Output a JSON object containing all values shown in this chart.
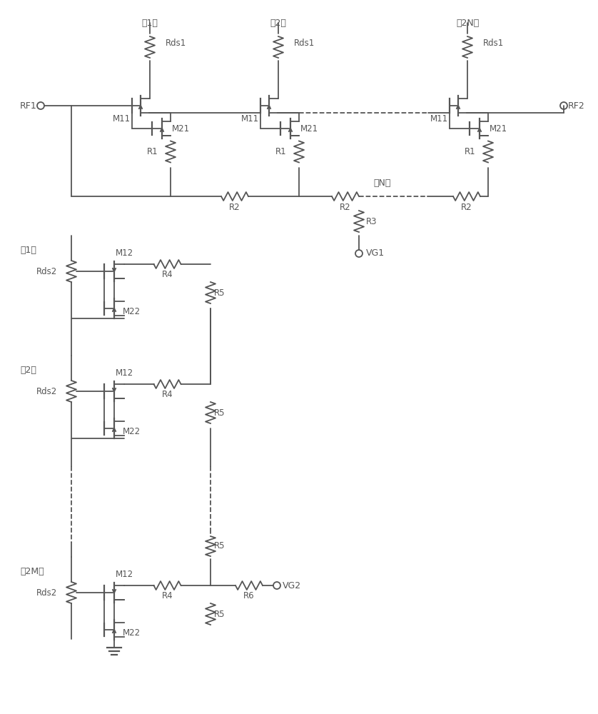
{
  "bg_color": "#ffffff",
  "line_color": "#555555",
  "line_width": 1.3,
  "fig_width": 8.38,
  "fig_height": 10.0,
  "font_size": 8.5,
  "font_size_label": 9.0,
  "rf1_label": "RF1",
  "rf2_label": "RF2",
  "vg1_label": "VG1",
  "vg2_label": "VG2",
  "stage1_top_label": "第1级",
  "stage2_top_label": "第2级",
  "stage2N_top_label": "第2N级",
  "stageN_label": "第N级",
  "stage1_left_label": "第1级",
  "stage2_left_label": "第2级",
  "stage2M_left_label": "第2M级",
  "rds1_label": "Rds1",
  "rds2_label": "Rds2",
  "r1_label": "R1",
  "r2_label": "R2",
  "r3_label": "R3",
  "r4_label": "R4",
  "r5_label": "R5",
  "r6_label": "R6",
  "m11_label": "M11",
  "m12_label": "M12",
  "m21_label": "M21",
  "m22_label": "M22"
}
